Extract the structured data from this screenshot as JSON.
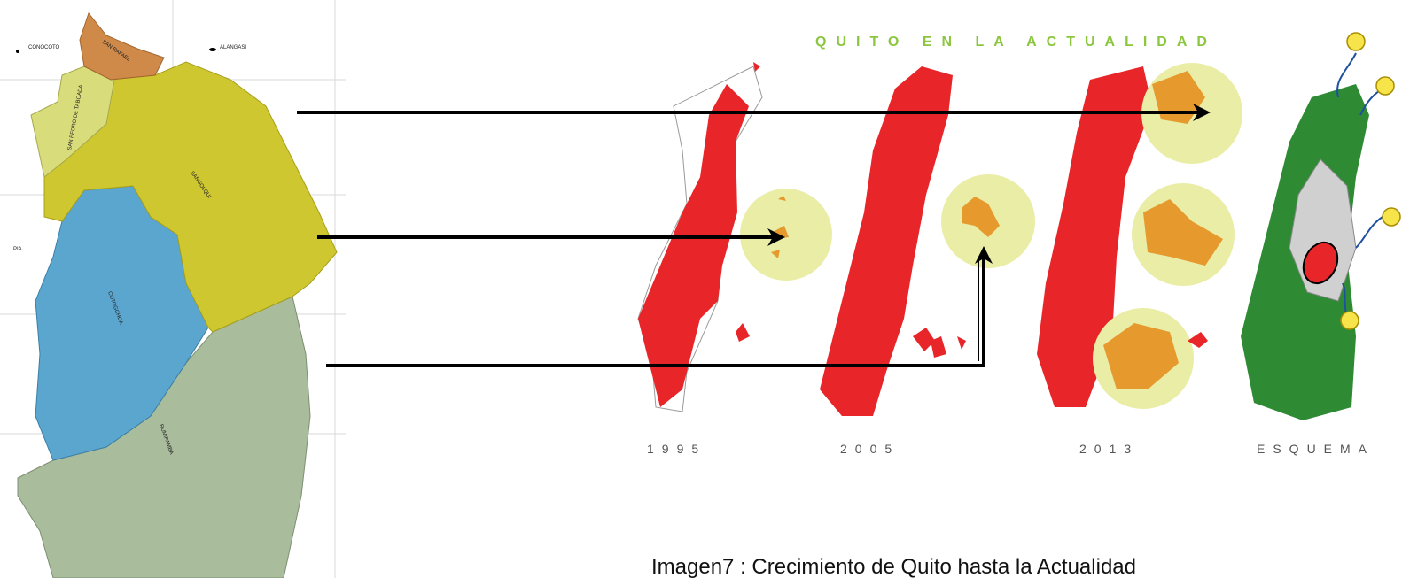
{
  "map_labels": [
    "CONOCOTO",
    "ALANGASI",
    "SAN RAFAEL",
    "SAN PEDRO DE TABOADA",
    "SANGOLQUI",
    "COTOGCHOA",
    "RUMIPAMBA",
    "PIA"
  ],
  "figure": {
    "title": "QUITO EN LA ACTUALIDAD",
    "panels": [
      "1995",
      "2005",
      "2013",
      "ESQUEMA"
    ]
  },
  "caption": "Imagen7 : Crecimiento de Quito hasta la Actualidad"
}
